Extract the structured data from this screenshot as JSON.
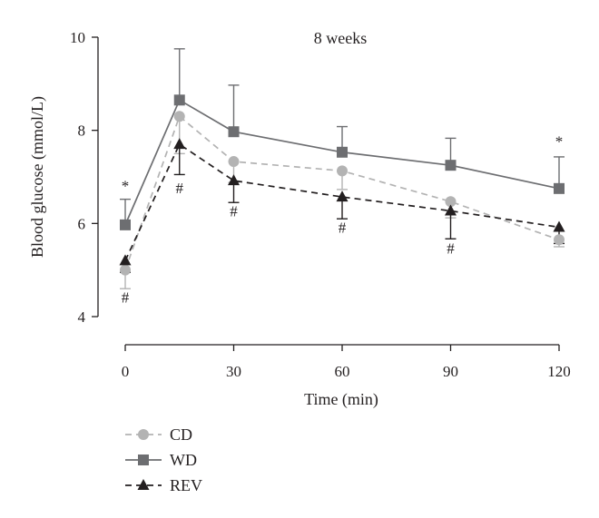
{
  "chart_data": {
    "type": "line",
    "title": "8 weeks",
    "xlabel": "Time (min)",
    "ylabel": "Blood glucose (mmol/L)",
    "x": [
      0,
      15,
      30,
      60,
      90,
      120
    ],
    "xticks": [
      0,
      30,
      60,
      90,
      120
    ],
    "xtick_labels": [
      "0",
      "30",
      "60",
      "90",
      "120"
    ],
    "yticks": [
      4,
      6,
      8,
      10
    ],
    "ytick_labels": [
      "4",
      "6",
      "8",
      "10"
    ],
    "xlim": [
      0,
      120
    ],
    "ylim": [
      4,
      10
    ],
    "grid": false,
    "legend_position": "bottom-left",
    "series": [
      {
        "name": "CD",
        "color": "#b3b3b3",
        "line_style": "dashed",
        "marker": "circle",
        "error_direction": "down",
        "values": [
          5.0,
          8.3,
          7.33,
          7.13,
          6.47,
          5.65
        ],
        "errors": [
          0.4,
          0.8,
          0.45,
          0.4,
          0.35,
          0.15
        ]
      },
      {
        "name": "WD",
        "color": "#6d6e71",
        "line_style": "solid",
        "marker": "square",
        "error_direction": "up",
        "values": [
          5.97,
          8.65,
          7.97,
          7.53,
          7.25,
          6.75
        ],
        "errors": [
          0.55,
          1.1,
          1.0,
          0.55,
          0.58,
          0.68
        ]
      },
      {
        "name": "REV",
        "color": "#231f20",
        "line_style": "dashed",
        "marker": "triangle",
        "error_direction": "down",
        "values": [
          5.2,
          7.7,
          6.92,
          6.57,
          6.27,
          5.92
        ],
        "errors": [
          0.25,
          0.65,
          0.47,
          0.47,
          0.6,
          0.35
        ]
      }
    ],
    "annotations": [
      {
        "text": "*",
        "x": 0,
        "y": 6.7
      },
      {
        "text": "#",
        "x": 0,
        "y": 4.3
      },
      {
        "text": "#",
        "x": 15,
        "y": 6.65
      },
      {
        "text": "#",
        "x": 30,
        "y": 6.15
      },
      {
        "text": "#",
        "x": 60,
        "y": 5.8
      },
      {
        "text": "#",
        "x": 90,
        "y": 5.35
      },
      {
        "text": "*",
        "x": 120,
        "y": 7.65
      }
    ]
  }
}
